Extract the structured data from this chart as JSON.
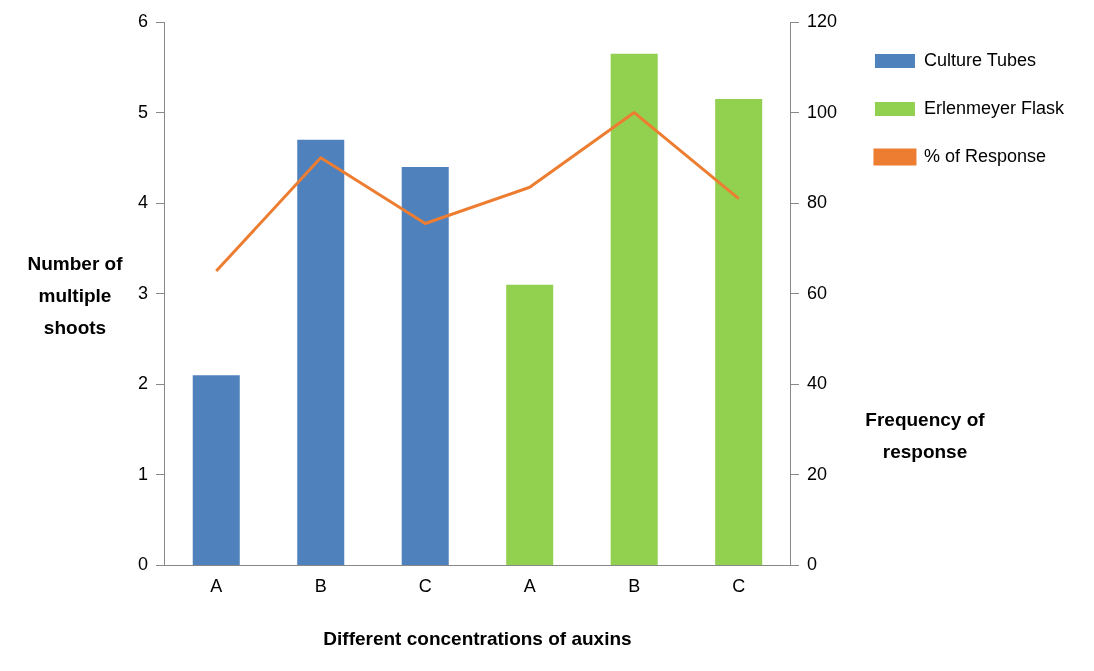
{
  "chart_data": {
    "type": "bar",
    "xlabel": "Different concentrations of auxins",
    "ylabel": "Number of multiple shoots",
    "y2label": "Frequency of response",
    "categories": [
      "A",
      "B",
      "C",
      "A",
      "B",
      "C"
    ],
    "series": [
      {
        "name": "Culture Tubes",
        "color": "#4f81bd",
        "values": [
          2.1,
          4.7,
          4.4,
          null,
          null,
          null
        ]
      },
      {
        "name": "Erlenmeyer Flask",
        "color": "#92d050",
        "values": [
          null,
          null,
          null,
          3.1,
          5.65,
          5.15
        ]
      },
      {
        "name": "% of Response",
        "type": "line",
        "axis": "y2",
        "color": "#ed7d31",
        "values": [
          65,
          90,
          75.5,
          83.5,
          100,
          81
        ]
      }
    ],
    "ylim": [
      0,
      6
    ],
    "yticks": [
      0,
      1,
      2,
      3,
      4,
      5,
      6
    ],
    "y2lim": [
      0,
      120
    ],
    "y2ticks": [
      0,
      20,
      40,
      60,
      80,
      100,
      120
    ],
    "grid": false,
    "legend": "right",
    "marker": "none"
  }
}
